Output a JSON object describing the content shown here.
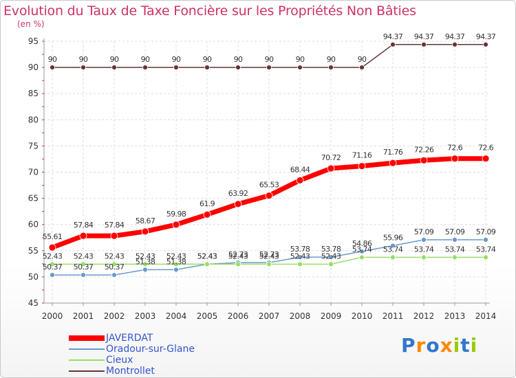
{
  "header": {
    "title": "Evolution du Taux de Taxe Foncière sur les Propriétés Non Bâties",
    "unit": "(en %)"
  },
  "logo": {
    "text": "Proxiti",
    "colors": [
      "#3377cc",
      "#ff8800",
      "#3377cc",
      "#ff8800",
      "#99cc00",
      "#3377cc",
      "#99cc00"
    ]
  },
  "chart_data": {
    "type": "line",
    "x": [
      "2000",
      "2001",
      "2002",
      "2003",
      "2004",
      "2005",
      "2006",
      "2007",
      "2008",
      "2009",
      "2010",
      "2011",
      "2012",
      "2013",
      "2014"
    ],
    "ylim": [
      45,
      95
    ],
    "yticks": [
      45,
      50,
      55,
      60,
      65,
      70,
      75,
      80,
      85,
      90,
      95
    ],
    "grid": true,
    "legend_position": "bottom-left",
    "series": [
      {
        "name": "JAVERDAT",
        "color": "#ff0000",
        "values": [
          55.61,
          57.84,
          57.84,
          58.67,
          59.98,
          61.9,
          63.92,
          65.53,
          68.44,
          70.72,
          71.16,
          71.76,
          72.26,
          72.6,
          72.6
        ],
        "labels": [
          "55.61",
          "57.84",
          "57.84",
          "58.67",
          "59.98",
          "61.9",
          "63.92",
          "65.53",
          "68.44",
          "70.72",
          "71.16",
          "71.76",
          "72.26",
          "72.6",
          "72.6"
        ]
      },
      {
        "name": "Oradour-sur-Glane",
        "color": "#6699cc",
        "values": [
          50.37,
          50.37,
          50.37,
          51.38,
          51.38,
          52.43,
          52.73,
          52.73,
          53.78,
          53.78,
          54.86,
          55.96,
          57.09,
          57.09,
          57.09
        ],
        "labels": [
          "50.37",
          "50.37",
          "50.37",
          "51.38",
          "51.38",
          "52.43",
          "52.73",
          "52.73",
          "53.78",
          "53.78",
          "54.86",
          "55.96",
          "57.09",
          "57.09",
          "57.09"
        ]
      },
      {
        "name": "Cieux",
        "color": "#99dd66",
        "values": [
          52.43,
          52.43,
          52.43,
          52.43,
          52.43,
          52.43,
          52.43,
          52.43,
          52.43,
          52.43,
          53.74,
          53.74,
          53.74,
          53.74,
          53.74
        ],
        "labels": [
          "52.43",
          "52.43",
          "52.43",
          "52.43",
          "52.43",
          "52.43",
          "52.43",
          "52.43",
          "52.43",
          "52.43",
          "53.74",
          "53.74",
          "53.74",
          "53.74",
          "53.74"
        ]
      },
      {
        "name": "Montrollet",
        "color": "#663333",
        "values": [
          90,
          90,
          90,
          90,
          90,
          90,
          90,
          90,
          90,
          90,
          90,
          94.37,
          94.37,
          94.37,
          94.37
        ],
        "labels": [
          "90",
          "90",
          "90",
          "90",
          "90",
          "90",
          "90",
          "90",
          "90",
          "90",
          "90",
          "94.37",
          "94.37",
          "94.37",
          "94.37"
        ]
      }
    ]
  }
}
